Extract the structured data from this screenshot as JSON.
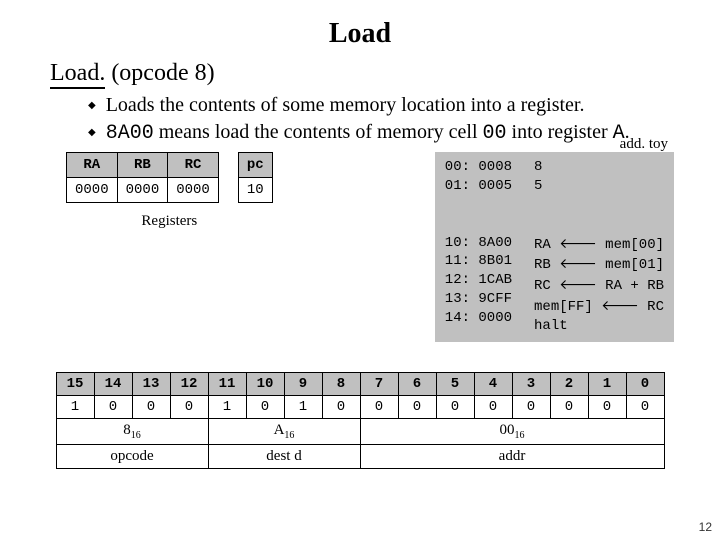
{
  "title": "Load",
  "subtitle_underline": "Load.",
  "subtitle_rest": "  (opcode  8)",
  "bullets": [
    "Loads the contents of some memory location into a register.",
    "8A00 means load the contents of memory cell 00 into register A."
  ],
  "registers": {
    "headers": [
      "RA",
      "RB",
      "RC",
      "pc"
    ],
    "values": [
      "0000",
      "0000",
      "0000",
      "10"
    ],
    "caption": "Registers"
  },
  "program": {
    "label": "add. toy",
    "col1": "00: 0008\n01: 0005\n\n\n10: 8A00\n11: 8B01\n12: 1CAB\n13: 9CFF\n14: 0000",
    "col2": "8\n5\n\n\nRA ← mem[00]\nRB ← mem[01]\nRC ← RA + RB\nmem[FF] ← RC\nhalt"
  },
  "bits": {
    "idx": [
      "15",
      "14",
      "13",
      "12",
      "11",
      "10",
      "9",
      "8",
      "7",
      "6",
      "5",
      "4",
      "3",
      "2",
      "1",
      "0"
    ],
    "val": [
      "1",
      "0",
      "0",
      "0",
      "1",
      "0",
      "1",
      "0",
      "0",
      "0",
      "0",
      "0",
      "0",
      "0",
      "0",
      "0"
    ],
    "hex": [
      "8₁₆",
      "A₁₆",
      "00₁₆"
    ],
    "lbl": [
      "opcode",
      "dest d",
      "addr"
    ]
  },
  "pagenum": "12"
}
